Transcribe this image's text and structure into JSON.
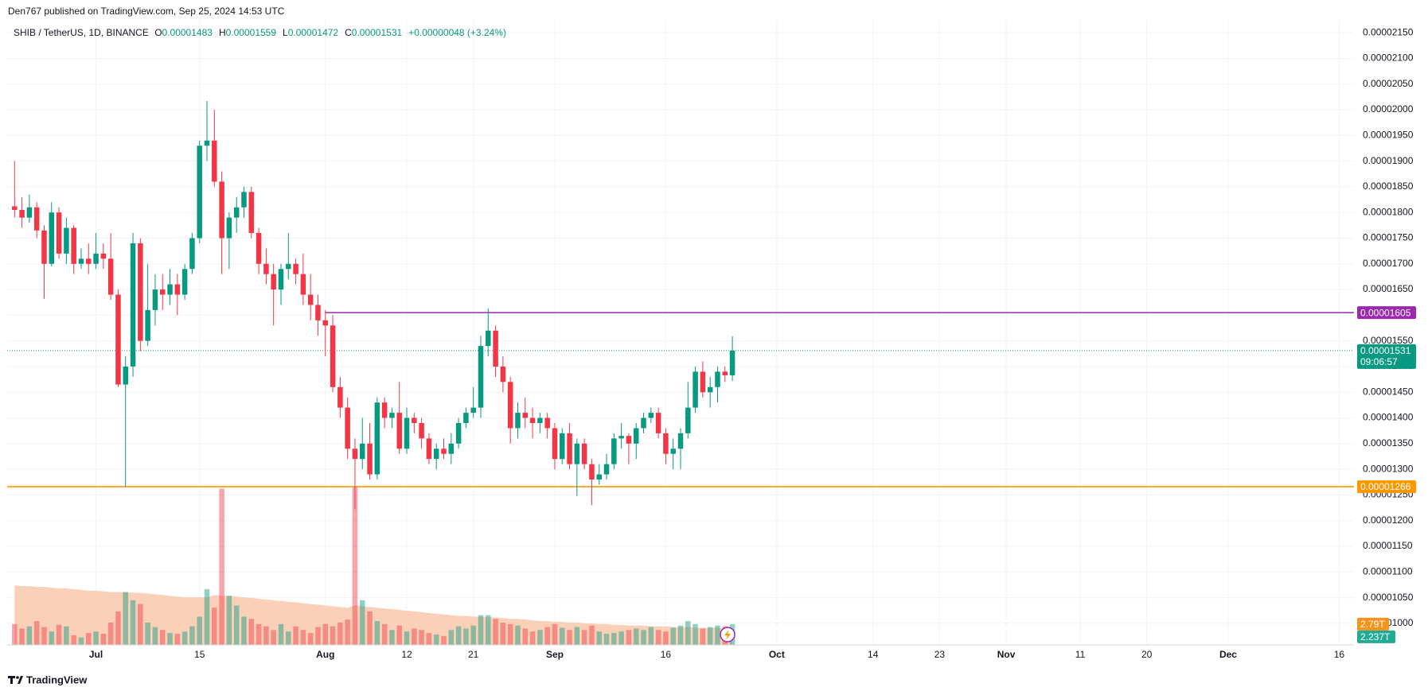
{
  "header": {
    "published": "Den767 published on TradingView.com, Sep 25, 2024 14:53 UTC"
  },
  "footer": {
    "brand": "TradingView"
  },
  "chart_data": {
    "type": "candlestick",
    "symbol": "SHIB / TetherUS, 1D, BINANCE",
    "legend": [
      {
        "label": "O",
        "value": "0.00001483"
      },
      {
        "label": "H",
        "value": "0.00001559"
      },
      {
        "label": "L",
        "value": "0.00001472"
      },
      {
        "label": "C",
        "value": "0.00001531"
      }
    ],
    "change": "+0.00000048 (+3.24%)",
    "x": [
      "06-20",
      "06-21",
      "06-22",
      "06-23",
      "06-24",
      "06-25",
      "06-26",
      "06-27",
      "06-28",
      "06-29",
      "06-30",
      "07-01",
      "07-02",
      "07-03",
      "07-04",
      "07-05",
      "07-06",
      "07-07",
      "07-08",
      "07-09",
      "07-10",
      "07-11",
      "07-12",
      "07-13",
      "07-14",
      "07-15",
      "07-16",
      "07-17",
      "07-18",
      "07-19",
      "07-20",
      "07-21",
      "07-22",
      "07-23",
      "07-24",
      "07-25",
      "07-26",
      "07-27",
      "07-28",
      "07-29",
      "07-30",
      "07-31",
      "08-01",
      "08-02",
      "08-03",
      "08-04",
      "08-05",
      "08-06",
      "08-07",
      "08-08",
      "08-09",
      "08-10",
      "08-11",
      "08-12",
      "08-13",
      "08-14",
      "08-15",
      "08-16",
      "08-17",
      "08-18",
      "08-19",
      "08-20",
      "08-21",
      "08-22",
      "08-23",
      "08-24",
      "08-25",
      "08-26",
      "08-27",
      "08-28",
      "08-29",
      "08-30",
      "08-31",
      "09-01",
      "09-02",
      "09-03",
      "09-04",
      "09-05",
      "09-06",
      "09-07",
      "09-08",
      "09-09",
      "09-10",
      "09-11",
      "09-12",
      "09-13",
      "09-14",
      "09-15",
      "09-16",
      "09-17",
      "09-18",
      "09-19",
      "09-20",
      "09-21",
      "09-22",
      "09-23",
      "09-24",
      "09-25"
    ],
    "candles": {
      "up_color": "#089981",
      "down_color": "#f23645",
      "open": [
        1.812e-05,
        1.805e-05,
        1.79e-05,
        1.81e-05,
        1.765e-05,
        1.7e-05,
        1.8e-05,
        1.72e-05,
        1.77e-05,
        1.7e-05,
        1.71e-05,
        1.7e-05,
        1.72e-05,
        1.71e-05,
        1.64e-05,
        1.465e-05,
        1.5e-05,
        1.74e-05,
        1.55e-05,
        1.61e-05,
        1.65e-05,
        1.64e-05,
        1.66e-05,
        1.64e-05,
        1.69e-05,
        1.75e-05,
        1.93e-05,
        1.94e-05,
        1.86e-05,
        1.75e-05,
        1.79e-05,
        1.81e-05,
        1.84e-05,
        1.76e-05,
        1.7e-05,
        1.68e-05,
        1.65e-05,
        1.69e-05,
        1.7e-05,
        1.68e-05,
        1.64e-05,
        1.62e-05,
        1.59e-05,
        1.58e-05,
        1.46e-05,
        1.42e-05,
        1.34e-05,
        1.32e-05,
        1.35e-05,
        1.29e-05,
        1.43e-05,
        1.4e-05,
        1.41e-05,
        1.34e-05,
        1.4e-05,
        1.39e-05,
        1.36e-05,
        1.32e-05,
        1.34e-05,
        1.33e-05,
        1.35e-05,
        1.39e-05,
        1.41e-05,
        1.42e-05,
        1.54e-05,
        1.57e-05,
        1.5e-05,
        1.47e-05,
        1.38e-05,
        1.41e-05,
        1.4e-05,
        1.39e-05,
        1.4e-05,
        1.38e-05,
        1.32e-05,
        1.37e-05,
        1.31e-05,
        1.35e-05,
        1.31e-05,
        1.28e-05,
        1.29e-05,
        1.31e-05,
        1.36e-05,
        1.365e-05,
        1.35e-05,
        1.38e-05,
        1.4e-05,
        1.41e-05,
        1.37e-05,
        1.33e-05,
        1.34e-05,
        1.37e-05,
        1.42e-05,
        1.49e-05,
        1.45e-05,
        1.46e-05,
        1.49e-05,
        1.483e-05
      ],
      "high": [
        1.9e-05,
        1.83e-05,
        1.835e-05,
        1.82e-05,
        1.775e-05,
        1.82e-05,
        1.81e-05,
        1.79e-05,
        1.775e-05,
        1.73e-05,
        1.74e-05,
        1.76e-05,
        1.74e-05,
        1.76e-05,
        1.65e-05,
        1.52e-05,
        1.76e-05,
        1.75e-05,
        1.7e-05,
        1.68e-05,
        1.68e-05,
        1.69e-05,
        1.68e-05,
        1.7e-05,
        1.76e-05,
        1.94e-05,
        2.017e-05,
        2e-05,
        1.88e-05,
        1.8e-05,
        1.83e-05,
        1.85e-05,
        1.85e-05,
        1.77e-05,
        1.73e-05,
        1.7e-05,
        1.7e-05,
        1.76e-05,
        1.71e-05,
        1.72e-05,
        1.68e-05,
        1.64e-05,
        1.61e-05,
        1.6e-05,
        1.48e-05,
        1.44e-05,
        1.36e-05,
        1.4e-05,
        1.39e-05,
        1.44e-05,
        1.44e-05,
        1.42e-05,
        1.47e-05,
        1.42e-05,
        1.41e-05,
        1.4e-05,
        1.37e-05,
        1.35e-05,
        1.36e-05,
        1.37e-05,
        1.4e-05,
        1.42e-05,
        1.46e-05,
        1.56e-05,
        1.613e-05,
        1.58e-05,
        1.52e-05,
        1.48e-05,
        1.43e-05,
        1.44e-05,
        1.42e-05,
        1.41e-05,
        1.41e-05,
        1.39e-05,
        1.38e-05,
        1.39e-05,
        1.36e-05,
        1.36e-05,
        1.32e-05,
        1.31e-05,
        1.33e-05,
        1.37e-05,
        1.39e-05,
        1.37e-05,
        1.39e-05,
        1.41e-05,
        1.42e-05,
        1.42e-05,
        1.38e-05,
        1.36e-05,
        1.38e-05,
        1.47e-05,
        1.5e-05,
        1.51e-05,
        1.48e-05,
        1.5e-05,
        1.5e-05,
        1.559e-05
      ],
      "low": [
        1.79e-05,
        1.77e-05,
        1.78e-05,
        1.75e-05,
        1.632e-05,
        1.695e-05,
        1.71e-05,
        1.7e-05,
        1.68e-05,
        1.69e-05,
        1.68e-05,
        1.69e-05,
        1.69e-05,
        1.63e-05,
        1.46e-05,
        1.266e-05,
        1.48e-05,
        1.53e-05,
        1.54e-05,
        1.58e-05,
        1.61e-05,
        1.62e-05,
        1.6e-05,
        1.63e-05,
        1.68e-05,
        1.74e-05,
        1.9e-05,
        1.85e-05,
        1.68e-05,
        1.69e-05,
        1.76e-05,
        1.79e-05,
        1.75e-05,
        1.68e-05,
        1.66e-05,
        1.58e-05,
        1.62e-05,
        1.67e-05,
        1.66e-05,
        1.62e-05,
        1.59e-05,
        1.56e-05,
        1.52e-05,
        1.45e-05,
        1.4e-05,
        1.32e-05,
        1.222e-05,
        1.3e-05,
        1.28e-05,
        1.28e-05,
        1.38e-05,
        1.38e-05,
        1.33e-05,
        1.33e-05,
        1.37e-05,
        1.34e-05,
        1.31e-05,
        1.3e-05,
        1.32e-05,
        1.31e-05,
        1.34e-05,
        1.38e-05,
        1.4e-05,
        1.4e-05,
        1.52e-05,
        1.48e-05,
        1.45e-05,
        1.35e-05,
        1.36e-05,
        1.38e-05,
        1.36e-05,
        1.37e-05,
        1.36e-05,
        1.3e-05,
        1.31e-05,
        1.3e-05,
        1.248e-05,
        1.3e-05,
        1.23e-05,
        1.27e-05,
        1.28e-05,
        1.3e-05,
        1.34e-05,
        1.31e-05,
        1.32e-05,
        1.37e-05,
        1.39e-05,
        1.36e-05,
        1.31e-05,
        1.3e-05,
        1.3e-05,
        1.36e-05,
        1.41e-05,
        1.44e-05,
        1.42e-05,
        1.43e-05,
        1.47e-05,
        1.472e-05
      ],
      "close": [
        1.805e-05,
        1.79e-05,
        1.81e-05,
        1.765e-05,
        1.7e-05,
        1.8e-05,
        1.72e-05,
        1.77e-05,
        1.7e-05,
        1.71e-05,
        1.7e-05,
        1.72e-05,
        1.71e-05,
        1.64e-05,
        1.465e-05,
        1.5e-05,
        1.74e-05,
        1.55e-05,
        1.61e-05,
        1.65e-05,
        1.64e-05,
        1.66e-05,
        1.64e-05,
        1.69e-05,
        1.75e-05,
        1.93e-05,
        1.94e-05,
        1.86e-05,
        1.75e-05,
        1.79e-05,
        1.81e-05,
        1.84e-05,
        1.76e-05,
        1.7e-05,
        1.68e-05,
        1.65e-05,
        1.69e-05,
        1.7e-05,
        1.68e-05,
        1.64e-05,
        1.62e-05,
        1.59e-05,
        1.58e-05,
        1.46e-05,
        1.42e-05,
        1.34e-05,
        1.32e-05,
        1.35e-05,
        1.29e-05,
        1.43e-05,
        1.4e-05,
        1.41e-05,
        1.34e-05,
        1.4e-05,
        1.39e-05,
        1.36e-05,
        1.32e-05,
        1.34e-05,
        1.33e-05,
        1.35e-05,
        1.39e-05,
        1.41e-05,
        1.42e-05,
        1.54e-05,
        1.57e-05,
        1.5e-05,
        1.47e-05,
        1.38e-05,
        1.41e-05,
        1.4e-05,
        1.39e-05,
        1.4e-05,
        1.38e-05,
        1.32e-05,
        1.37e-05,
        1.31e-05,
        1.35e-05,
        1.31e-05,
        1.28e-05,
        1.29e-05,
        1.31e-05,
        1.36e-05,
        1.365e-05,
        1.35e-05,
        1.38e-05,
        1.4e-05,
        1.41e-05,
        1.37e-05,
        1.33e-05,
        1.34e-05,
        1.37e-05,
        1.42e-05,
        1.49e-05,
        1.45e-05,
        1.46e-05,
        1.49e-05,
        1.483e-05,
        1.531e-05
      ]
    },
    "countdown": "09:06:57",
    "volume": {
      "up_color": "#089981",
      "down_color": "#f23645",
      "label_color": "#f7931a",
      "ylim": [
        0,
        84
      ],
      "last_label": "2.79T",
      "values": [
        2.8,
        2.2,
        2.5,
        3.2,
        2.4,
        1.8,
        2.7,
        2.5,
        1.3,
        1.0,
        1.6,
        1.8,
        1.5,
        3.0,
        4.5,
        7.1,
        6.0,
        5.5,
        3.0,
        2.4,
        2.0,
        1.6,
        1.5,
        1.8,
        2.5,
        3.8,
        7.5,
        5.0,
        21.0,
        6.6,
        5.3,
        3.8,
        3.5,
        2.8,
        2.5,
        2.0,
        2.8,
        1.8,
        2.5,
        2.0,
        1.6,
        2.4,
        2.8,
        2.5,
        3.0,
        3.4,
        21.2,
        6.0,
        4.5,
        3.2,
        2.8,
        2.0,
        2.6,
        1.8,
        2.2,
        2.0,
        1.6,
        1.4,
        1.2,
        2.0,
        2.5,
        2.2,
        2.6,
        4.0,
        4.0,
        3.5,
        3.0,
        2.8,
        2.6,
        2.2,
        1.8,
        2.0,
        2.4,
        2.8,
        2.3,
        2.0,
        2.4,
        2.0,
        2.6,
        1.8,
        1.5,
        1.6,
        1.8,
        2.0,
        2.2,
        2.0,
        2.4,
        2.0,
        1.8,
        2.3,
        2.6,
        3.2,
        2.8,
        2.2,
        2.4,
        2.6,
        2.5,
        2.79
      ]
    },
    "volume_ma": {
      "color": "#f9c6a6",
      "label_color": "#22ab94",
      "last_label": "2.237T",
      "values": [
        8.0,
        7.9,
        7.9,
        7.8,
        7.8,
        7.7,
        7.6,
        7.6,
        7.5,
        7.4,
        7.3,
        7.3,
        7.2,
        7.1,
        7.1,
        7.1,
        7.0,
        7.0,
        6.9,
        6.8,
        6.7,
        6.6,
        6.5,
        6.4,
        6.4,
        6.4,
        6.4,
        6.7,
        6.6,
        6.6,
        6.5,
        6.4,
        6.3,
        6.2,
        6.1,
        6.0,
        5.9,
        5.8,
        5.7,
        5.6,
        5.5,
        5.4,
        5.3,
        5.2,
        5.1,
        5.0,
        5.3,
        5.2,
        5.1,
        5.0,
        4.9,
        4.8,
        4.7,
        4.6,
        4.5,
        4.4,
        4.3,
        4.2,
        4.1,
        4.0,
        3.9,
        3.9,
        3.8,
        3.8,
        3.7,
        3.7,
        3.6,
        3.5,
        3.5,
        3.4,
        3.3,
        3.2,
        3.2,
        3.1,
        3.1,
        3.0,
        3.0,
        2.9,
        2.9,
        2.8,
        2.8,
        2.7,
        2.7,
        2.6,
        2.6,
        2.6,
        2.5,
        2.5,
        2.5,
        2.4,
        2.4,
        2.4,
        2.3,
        2.3,
        2.3,
        2.3,
        2.25,
        2.237
      ]
    },
    "hlines": [
      {
        "value": 1.605e-05,
        "color": "#9c27b0",
        "start": "08-01"
      },
      {
        "value": 1.266e-05,
        "color": "#ff9800"
      }
    ],
    "xlim": [
      "06-19",
      "12-18"
    ],
    "xticks": [
      {
        "value": "07-01",
        "label": "Jul"
      },
      {
        "value": "07-15",
        "label": "15"
      },
      {
        "value": "08-01",
        "label": "Aug"
      },
      {
        "value": "08-12",
        "label": "12"
      },
      {
        "value": "08-21",
        "label": "21"
      },
      {
        "value": "09-01",
        "label": "Sep"
      },
      {
        "value": "09-16",
        "label": "16"
      },
      {
        "value": "10-01",
        "label": "Oct"
      },
      {
        "value": "10-14",
        "label": "14"
      },
      {
        "value": "10-23",
        "label": "23"
      },
      {
        "value": "11-01",
        "label": "Nov"
      },
      {
        "value": "11-11",
        "label": "11"
      },
      {
        "value": "11-20",
        "label": "20"
      },
      {
        "value": "12-01",
        "label": "Dec"
      },
      {
        "value": "12-16",
        "label": "16"
      }
    ],
    "ylim": [
      9.58e-06,
      2.175e-05
    ],
    "yticks": [
      {
        "value": 1e-05,
        "label": "0.00001000"
      },
      {
        "value": 1.05e-05,
        "label": "0.00001050"
      },
      {
        "value": 1.1e-05,
        "label": "0.00001100"
      },
      {
        "value": 1.15e-05,
        "label": "0.00001150"
      },
      {
        "value": 1.2e-05,
        "label": "0.00001200"
      },
      {
        "value": 1.25e-05,
        "label": "0.00001250"
      },
      {
        "value": 1.3e-05,
        "label": "0.00001300"
      },
      {
        "value": 1.35e-05,
        "label": "0.00001350"
      },
      {
        "value": 1.4e-05,
        "label": "0.00001400"
      },
      {
        "value": 1.45e-05,
        "label": "0.00001450"
      },
      {
        "value": 1.5e-05,
        "label": "0.00001500"
      },
      {
        "value": 1.55e-05,
        "label": "0.00001550"
      },
      {
        "value": 1.6e-05,
        "label": "0.00001600"
      },
      {
        "value": 1.65e-05,
        "label": "0.00001650"
      },
      {
        "value": 1.7e-05,
        "label": "0.00001700"
      },
      {
        "value": 1.75e-05,
        "label": "0.00001750"
      },
      {
        "value": 1.8e-05,
        "label": "0.00001800"
      },
      {
        "value": 1.85e-05,
        "label": "0.00001850"
      },
      {
        "value": 1.9e-05,
        "label": "0.00001900"
      },
      {
        "value": 1.95e-05,
        "label": "0.00001950"
      },
      {
        "value": 2e-05,
        "label": "0.00002000"
      },
      {
        "value": 2.05e-05,
        "label": "0.00002050"
      },
      {
        "value": 2.1e-05,
        "label": "0.00002100"
      },
      {
        "value": 2.15e-05,
        "label": "0.00002150"
      }
    ],
    "grid": true
  }
}
